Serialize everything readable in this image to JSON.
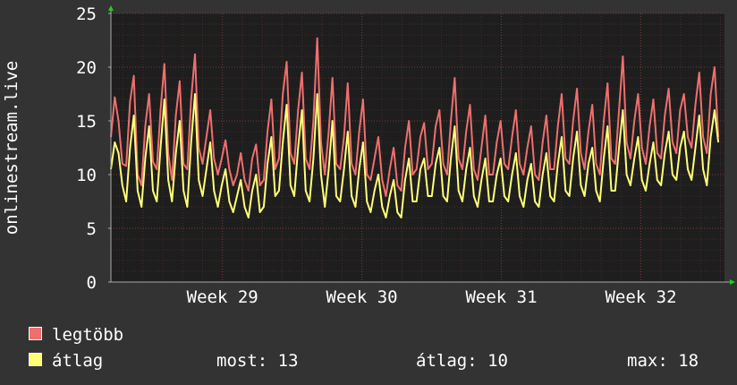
{
  "colors": {
    "background": "#333333",
    "plot_background": "#1e1e1e",
    "grid_major": "#7a3a3a",
    "grid_minor": "#4a2a2a",
    "axis": "#aaaaaa",
    "arrow": "#22cc22",
    "series_max": "#ee6f6f",
    "series_avg": "#ffff77"
  },
  "legend": {
    "max_label": "legtöbb",
    "avg_label": "átlag",
    "now_text": "most: 13",
    "avg_text": "átlag: 10",
    "max_text": "max: 18"
  },
  "chart_data": {
    "type": "line",
    "ylabel": "onlinestream.live",
    "ylim": [
      0,
      25
    ],
    "yticks": [
      0,
      5,
      10,
      15,
      20,
      25
    ],
    "x_ticks": [
      "Week 29",
      "Week 30",
      "Week 31",
      "Week 32"
    ],
    "grid": true,
    "sampling": "4 samples per day",
    "x_range_weeks": [
      28.2,
      32.6
    ],
    "series": [
      {
        "name": "legtöbb",
        "color": "#ee6f6f",
        "values": [
          13.5,
          17.2,
          15.0,
          11.0,
          10.8,
          16.8,
          19.2,
          10.0,
          9.0,
          14.5,
          17.5,
          11.2,
          10.5,
          16.0,
          20.3,
          12.0,
          9.5,
          15.5,
          18.7,
          11.0,
          10.5,
          17.0,
          21.2,
          12.5,
          11.0,
          13.5,
          16.0,
          11.5,
          10.0,
          11.5,
          13.2,
          10.5,
          9.0,
          10.0,
          12.0,
          9.5,
          8.5,
          11.5,
          12.8,
          9.0,
          9.5,
          14.0,
          17.0,
          10.5,
          11.5,
          17.5,
          20.5,
          12.0,
          11.0,
          16.0,
          19.5,
          11.5,
          10.5,
          15.0,
          22.7,
          13.0,
          10.0,
          14.0,
          19.0,
          11.0,
          10.5,
          13.5,
          18.5,
          11.0,
          10.0,
          14.0,
          17.0,
          10.0,
          9.5,
          11.5,
          13.5,
          9.5,
          8.0,
          10.5,
          12.5,
          9.0,
          8.5,
          12.5,
          15.0,
          10.0,
          10.5,
          13.5,
          14.8,
          10.5,
          11.0,
          14.5,
          16.0,
          11.0,
          10.0,
          15.0,
          19.0,
          11.5,
          10.5,
          14.0,
          16.5,
          10.5,
          9.5,
          12.5,
          15.5,
          10.0,
          10.0,
          13.0,
          15.0,
          11.0,
          10.5,
          13.5,
          16.0,
          11.0,
          10.0,
          12.5,
          14.5,
          10.0,
          9.5,
          13.0,
          15.5,
          10.5,
          10.5,
          14.5,
          17.5,
          11.5,
          11.0,
          15.0,
          18.0,
          12.0,
          10.5,
          14.0,
          16.5,
          11.0,
          10.0,
          15.0,
          18.5,
          11.5,
          11.0,
          16.0,
          21.0,
          13.0,
          11.5,
          15.0,
          17.5,
          12.5,
          11.0,
          14.5,
          17.0,
          12.0,
          11.5,
          15.5,
          18.0,
          13.0,
          12.0,
          16.0,
          17.5,
          13.5,
          12.5,
          16.5,
          19.5,
          13.5,
          12.0,
          17.5,
          20.0,
          13.5
        ]
      },
      {
        "name": "átlag",
        "color": "#ffff77",
        "values": [
          10.5,
          13.0,
          12.0,
          9.0,
          7.5,
          12.5,
          15.5,
          8.5,
          7.0,
          11.5,
          14.5,
          8.5,
          7.5,
          12.5,
          17.0,
          9.5,
          7.5,
          12.0,
          15.0,
          8.5,
          7.0,
          13.0,
          17.5,
          9.5,
          8.0,
          10.5,
          13.0,
          8.5,
          7.0,
          9.0,
          10.5,
          7.5,
          6.5,
          8.0,
          9.5,
          7.0,
          6.0,
          8.5,
          10.0,
          6.5,
          7.0,
          11.0,
          13.5,
          8.0,
          8.5,
          13.0,
          16.5,
          9.0,
          8.0,
          12.5,
          16.0,
          8.5,
          7.5,
          11.5,
          17.5,
          10.0,
          7.0,
          10.5,
          15.0,
          8.0,
          7.5,
          10.5,
          14.0,
          8.0,
          7.0,
          10.5,
          13.0,
          7.5,
          6.5,
          8.5,
          10.0,
          7.0,
          6.0,
          8.0,
          9.5,
          6.5,
          6.0,
          9.5,
          11.5,
          7.5,
          7.5,
          10.5,
          11.5,
          8.0,
          8.0,
          11.0,
          12.5,
          8.0,
          7.5,
          11.5,
          14.5,
          8.5,
          7.5,
          10.5,
          12.5,
          8.0,
          7.0,
          9.5,
          11.5,
          7.5,
          7.5,
          10.0,
          11.5,
          8.0,
          7.5,
          10.0,
          12.0,
          8.0,
          7.0,
          9.5,
          11.0,
          7.5,
          7.0,
          10.0,
          12.0,
          8.0,
          7.5,
          11.0,
          13.5,
          8.5,
          8.0,
          11.5,
          14.0,
          9.0,
          8.0,
          11.0,
          12.5,
          8.5,
          7.5,
          11.5,
          14.5,
          8.5,
          8.5,
          12.5,
          16.0,
          10.0,
          9.0,
          11.5,
          13.5,
          9.5,
          8.5,
          11.0,
          13.0,
          9.5,
          9.0,
          12.0,
          14.0,
          10.0,
          9.5,
          12.5,
          14.0,
          10.5,
          9.5,
          12.5,
          15.5,
          10.5,
          9.0,
          13.5,
          16.0,
          13.0
        ]
      }
    ]
  }
}
